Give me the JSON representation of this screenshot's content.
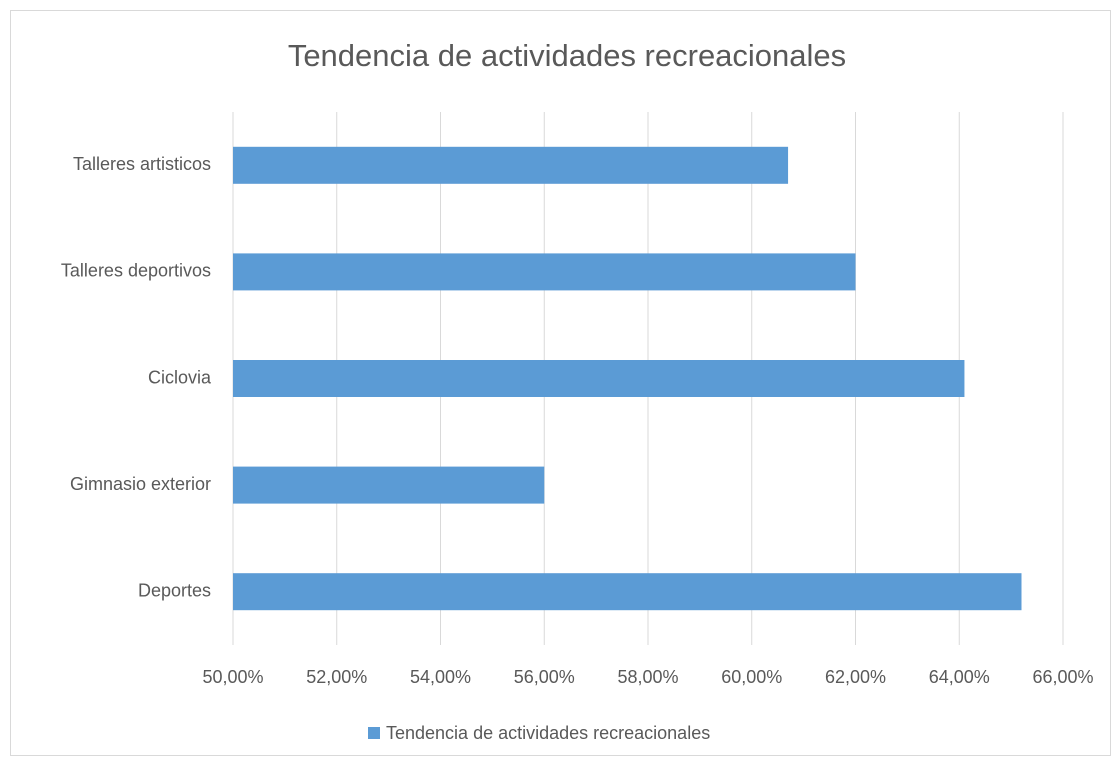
{
  "chart_data": {
    "type": "bar",
    "orientation": "horizontal",
    "title": "Tendencia de actividades recreacionales",
    "categories": [
      "Talleres artisticos",
      "Talleres deportivos",
      "Ciclovia",
      "Gimnasio exterior",
      "Deportes"
    ],
    "series": [
      {
        "name": "Tendencia de actividades recreacionales",
        "color": "#5b9bd5",
        "values": [
          60.7,
          62.0,
          64.1,
          56.0,
          65.2
        ]
      }
    ],
    "xlim": [
      50,
      66
    ],
    "xticks": [
      {
        "value": 50,
        "label": "50,00%"
      },
      {
        "value": 52,
        "label": "52,00%"
      },
      {
        "value": 54,
        "label": "54,00%"
      },
      {
        "value": 56,
        "label": "56,00%"
      },
      {
        "value": 58,
        "label": "58,00%"
      },
      {
        "value": 60,
        "label": "60,00%"
      },
      {
        "value": 62,
        "label": "62,00%"
      },
      {
        "value": 64,
        "label": "64,00%"
      },
      {
        "value": 66,
        "label": "66,00%"
      }
    ],
    "grid": true,
    "legend": "bottom"
  }
}
